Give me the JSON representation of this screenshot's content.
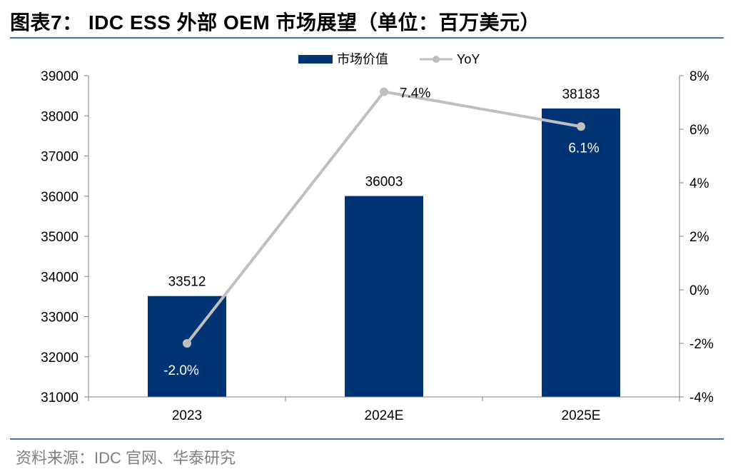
{
  "page": {
    "title": "图表7： IDC ESS 外部 OEM 市场展望（单位：百万美元）",
    "source": "资料来源：IDC 官网、华泰研究"
  },
  "colors": {
    "bar": "#003474",
    "line": "#bfbfbf",
    "rule": "#4472a8",
    "axis": "#7f7f7f"
  },
  "chart_data": {
    "type": "bar",
    "title": "IDC ESS 外部 OEM 市场展望（单位：百万美元）",
    "categories": [
      "2023",
      "2024E",
      "2025E"
    ],
    "series": [
      {
        "name": "市场价值",
        "type": "bar",
        "axis": "left",
        "values": [
          33512,
          36003,
          38183
        ],
        "labels": [
          "33512",
          "36003",
          "38183"
        ]
      },
      {
        "name": "YoY",
        "type": "line",
        "axis": "right",
        "values": [
          -2.0,
          7.4,
          6.1
        ],
        "labels": [
          "-2.0%",
          "7.4%",
          "6.1%"
        ]
      }
    ],
    "y_left": {
      "min": 31000,
      "max": 39000,
      "ticks": [
        "31000",
        "32000",
        "33000",
        "34000",
        "35000",
        "36000",
        "37000",
        "38000",
        "39000"
      ]
    },
    "y_right": {
      "min": -4,
      "max": 8,
      "ticks": [
        "-4%",
        "-2%",
        "0%",
        "2%",
        "4%",
        "6%",
        "8%"
      ]
    },
    "legend": {
      "position": "top",
      "items": [
        "市场价值",
        "YoY"
      ]
    },
    "grid": false
  }
}
